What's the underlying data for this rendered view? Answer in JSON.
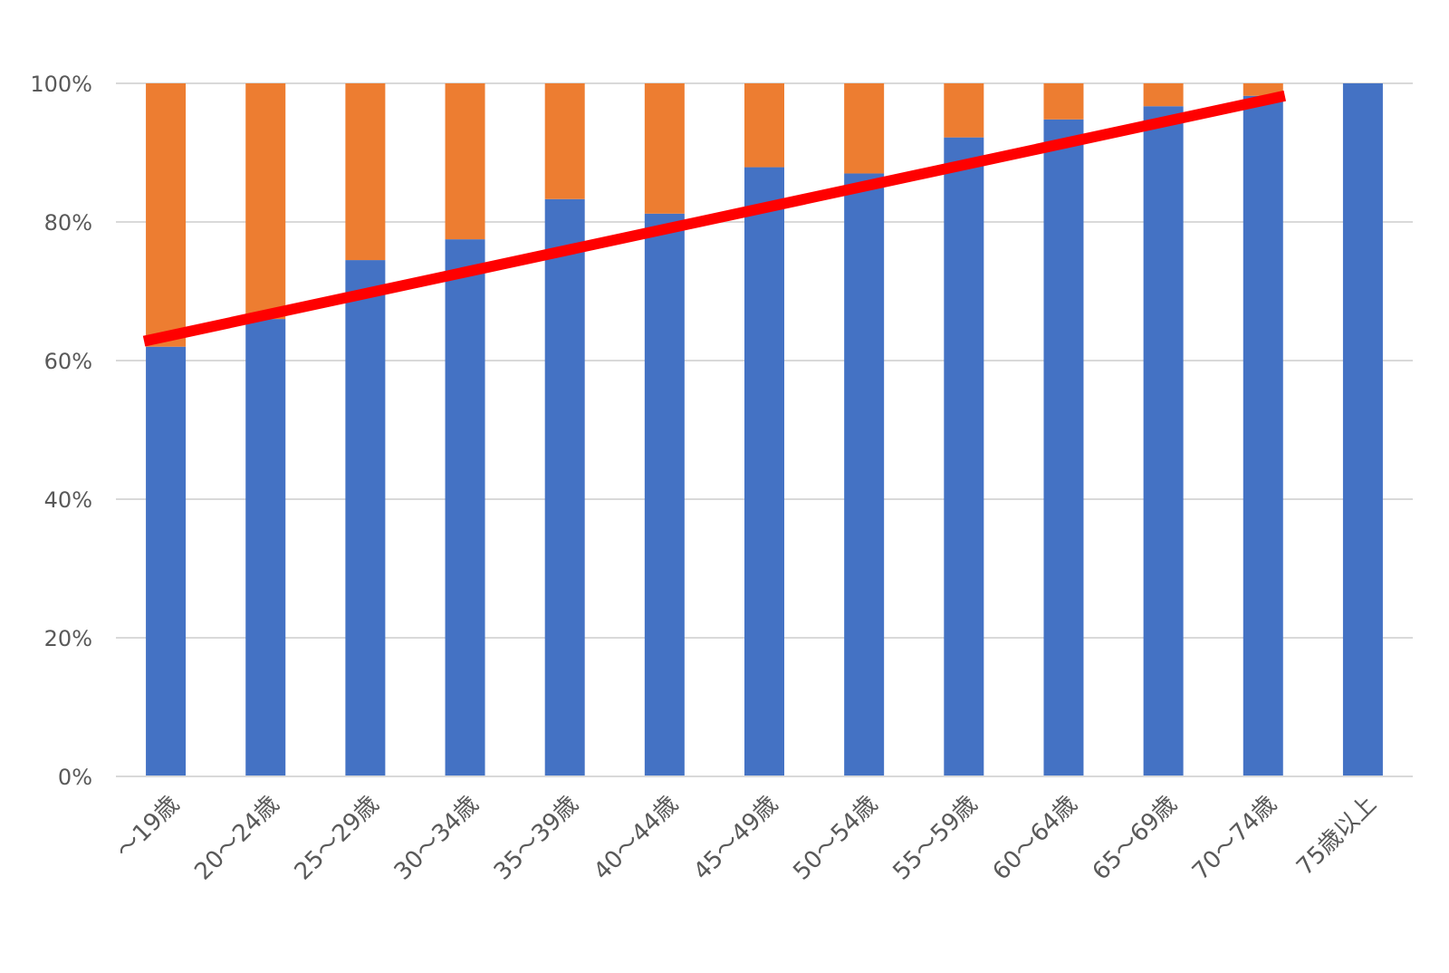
{
  "chart_data": {
    "type": "bar",
    "stacked": true,
    "percent_stacked": true,
    "categories": [
      "～19歳",
      "20～24歳",
      "25～29歳",
      "30～34歳",
      "35～39歳",
      "40～44歳",
      "45～49歳",
      "50～54歳",
      "55～59歳",
      "60～64歳",
      "65～69歳",
      "70～74歳",
      "75歳以上"
    ],
    "series": [
      {
        "color": "#4472c4",
        "values": [
          62,
          66,
          74.5,
          77.5,
          83.3,
          81.2,
          87.9,
          87,
          92.2,
          94.8,
          96.7,
          98.2,
          100
        ]
      },
      {
        "color": "#ed7d31",
        "values": [
          38,
          34,
          25.5,
          22.5,
          16.7,
          18.8,
          12.1,
          13,
          7.8,
          5.2,
          3.3,
          1.8,
          0
        ]
      }
    ],
    "trendline": {
      "color": "#ff0000",
      "start": {
        "category": "～19歳",
        "y": 62.8
      },
      "end": {
        "category": "70～74歳",
        "y": 98.2
      }
    },
    "y_ticks": [
      "0%",
      "20%",
      "40%",
      "60%",
      "80%",
      "100%"
    ],
    "ylim": [
      0,
      100
    ],
    "grid": true,
    "legend": "none"
  }
}
